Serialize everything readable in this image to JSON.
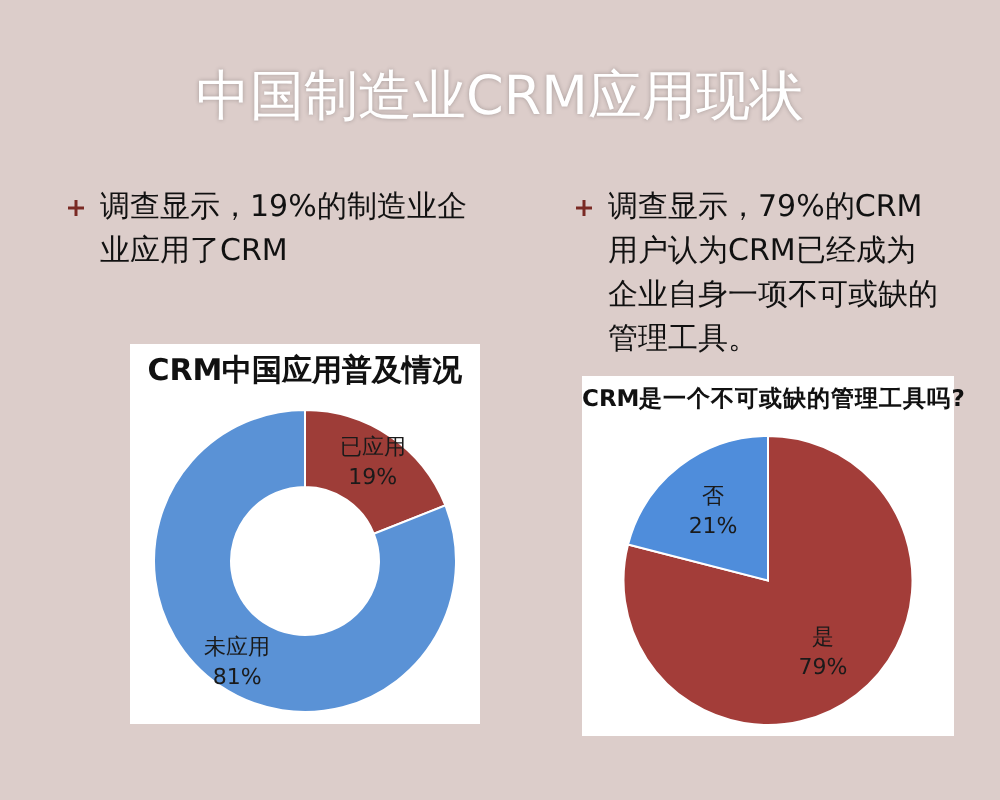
{
  "chart_data": [
    {
      "type": "other",
      "title": "中国制造业CRM应用现状"
    },
    {
      "type": "donut",
      "title": "CRM中国应用普及情况",
      "annotations": [
        "调查显示，19%的制造业企业应用了CRM"
      ],
      "categories": [
        "已应用",
        "未应用"
      ],
      "values": [
        19,
        81
      ],
      "value_labels": [
        "19%",
        "81%"
      ],
      "colors": [
        "#9e3d38",
        "#5a92d6"
      ]
    },
    {
      "type": "pie",
      "title": "CRM是一个不可或缺的管理工具吗?",
      "annotations": [
        "调查显示，79%的CRM用户认为CRM已经成为企业自身一项不可或缺的管理工具。"
      ],
      "categories": [
        "是",
        "否"
      ],
      "values": [
        79,
        21
      ],
      "value_labels": [
        "79%",
        "21%"
      ],
      "colors": [
        "#a33d39",
        "#4f8ddb"
      ]
    }
  ]
}
